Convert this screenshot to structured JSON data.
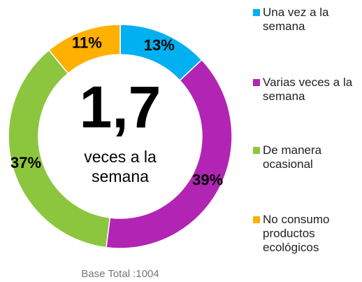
{
  "chart_data": {
    "type": "donut",
    "categories": [
      "Una vez a la semana",
      "Varias veces a la semana",
      "De manera ocasional",
      "No consumo productos ecológicos"
    ],
    "values": [
      13,
      39,
      37,
      11
    ],
    "value_labels": [
      "13%",
      "39%",
      "37%",
      "11%"
    ],
    "colors": [
      "#00b0f0",
      "#b124b4",
      "#8cc63e",
      "#ffb000"
    ],
    "center_value": "1,7",
    "center_text": "veces a la semana",
    "footnote": "Base Total :1004",
    "legend": "right"
  }
}
